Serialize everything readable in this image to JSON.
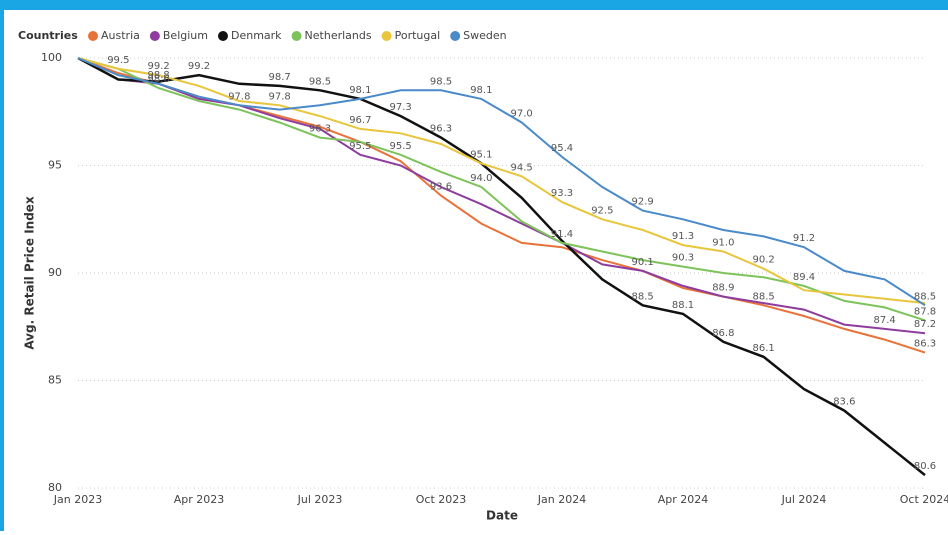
{
  "chart_data": {
    "type": "line",
    "legend_title": "Countries",
    "x_label": "Date",
    "y_label": "Avg. Retail Price Index",
    "categories": [
      "Jan 2023",
      null,
      null,
      "Apr 2023",
      null,
      null,
      "Jul 2023",
      null,
      null,
      "Oct 2023",
      null,
      null,
      "Jan 2024",
      null,
      null,
      "Apr 2024",
      null,
      null,
      "Jul 2024",
      null,
      null,
      "Oct 2024"
    ],
    "ylim": [
      80,
      100
    ],
    "yticks": [
      80,
      85,
      90,
      95,
      100
    ],
    "grid": true,
    "legend": "top-left",
    "series": [
      {
        "name": "Austria",
        "color": "#e8733a",
        "values": [
          100,
          99.3,
          98.8,
          98.2,
          97.8,
          97.3,
          96.8,
          96.1,
          95.2,
          93.6,
          92.3,
          91.4,
          91.2,
          90.6,
          90.1,
          89.3,
          88.9,
          88.5,
          88.0,
          87.4,
          86.9,
          86.3
        ],
        "value_labels": [
          null,
          null,
          "98.8",
          null,
          "97.8",
          null,
          null,
          null,
          null,
          "93.6",
          null,
          null,
          null,
          null,
          null,
          null,
          null,
          "88.5",
          null,
          null,
          null,
          "86.3"
        ]
      },
      {
        "name": "Belgium",
        "color": "#8e3c9e",
        "values": [
          100,
          99.0,
          98.8,
          98.1,
          97.8,
          97.2,
          96.7,
          95.5,
          95.0,
          94.0,
          93.2,
          92.3,
          91.4,
          90.4,
          90.1,
          89.4,
          88.9,
          88.6,
          88.3,
          87.6,
          87.4,
          87.2
        ],
        "value_labels": [
          null,
          null,
          null,
          null,
          null,
          null,
          null,
          "95.5",
          null,
          null,
          null,
          null,
          "91.4",
          null,
          "90.1",
          null,
          "88.9",
          null,
          null,
          null,
          "87.4",
          "87.2"
        ]
      },
      {
        "name": "Denmark",
        "color": "#111111",
        "values": [
          100,
          99.0,
          98.9,
          99.2,
          98.8,
          98.7,
          98.5,
          98.1,
          97.3,
          96.3,
          95.1,
          93.5,
          91.5,
          89.7,
          88.5,
          88.1,
          86.8,
          86.1,
          84.6,
          83.6,
          82.1,
          80.6
        ],
        "value_labels": [
          null,
          null,
          null,
          "99.2",
          null,
          "98.7",
          "98.5",
          "98.1",
          "97.3",
          "96.3",
          "95.1",
          null,
          null,
          null,
          "88.5",
          "88.1",
          "86.8",
          "86.1",
          null,
          "83.6",
          null,
          "80.6"
        ]
      },
      {
        "name": "Netherlands",
        "color": "#7dc35b",
        "values": [
          100,
          99.5,
          98.6,
          98.0,
          97.6,
          97.0,
          96.3,
          96.1,
          95.5,
          94.7,
          94.0,
          92.4,
          91.4,
          91.0,
          90.6,
          90.3,
          90.0,
          89.8,
          89.4,
          88.7,
          88.4,
          87.8
        ],
        "value_labels": [
          null,
          null,
          "98.6",
          null,
          null,
          null,
          "96.3",
          null,
          "95.5",
          null,
          "94.0",
          null,
          null,
          null,
          null,
          "90.3",
          null,
          null,
          "89.4",
          null,
          null,
          "87.8"
        ]
      },
      {
        "name": "Portugal",
        "color": "#e8c53a",
        "values": [
          100,
          99.5,
          99.2,
          98.7,
          98.0,
          97.8,
          97.3,
          96.7,
          96.5,
          96.0,
          95.1,
          94.5,
          93.3,
          92.5,
          92.0,
          91.3,
          91.0,
          90.2,
          89.2,
          89.0,
          88.8,
          88.6
        ],
        "value_labels": [
          null,
          "99.5",
          "99.2",
          null,
          null,
          "97.8",
          null,
          "96.7",
          null,
          null,
          null,
          "94.5",
          "93.3",
          "92.5",
          null,
          "91.3",
          "91.0",
          "90.2",
          null,
          null,
          null,
          null
        ]
      },
      {
        "name": "Sweden",
        "color": "#4a8ac9",
        "values": [
          100,
          99.2,
          98.8,
          98.2,
          97.8,
          97.6,
          97.8,
          98.1,
          98.5,
          98.5,
          98.1,
          97.0,
          95.4,
          94.0,
          92.9,
          92.5,
          92.0,
          91.7,
          91.2,
          90.1,
          89.7,
          88.5
        ],
        "value_labels": [
          null,
          null,
          null,
          null,
          null,
          null,
          null,
          null,
          null,
          "98.5",
          "98.1",
          "97.0",
          "95.4",
          null,
          "92.9",
          null,
          null,
          null,
          "91.2",
          null,
          null,
          "88.5"
        ]
      }
    ]
  }
}
